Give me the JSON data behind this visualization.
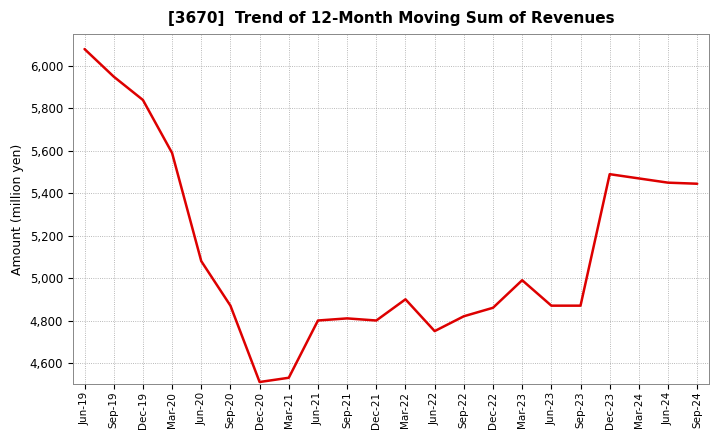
{
  "title": "[3670]  Trend of 12-Month Moving Sum of Revenues",
  "ylabel": "Amount (million yen)",
  "line_color": "#dd0000",
  "background_color": "#ffffff",
  "plot_bg_color": "#ffffff",
  "grid_color": "#999999",
  "ylim": [
    4500,
    6150
  ],
  "yticks": [
    4600,
    4800,
    5000,
    5200,
    5400,
    5600,
    5800,
    6000
  ],
  "x_labels": [
    "Jun-19",
    "Sep-19",
    "Dec-19",
    "Mar-20",
    "Jun-20",
    "Sep-20",
    "Dec-20",
    "Mar-21",
    "Jun-21",
    "Sep-21",
    "Dec-21",
    "Mar-22",
    "Jun-22",
    "Sep-22",
    "Dec-22",
    "Mar-23",
    "Jun-23",
    "Sep-23",
    "Dec-23",
    "Mar-24",
    "Jun-24",
    "Sep-24"
  ],
  "values": [
    6080,
    5950,
    5840,
    5590,
    5080,
    4870,
    4510,
    4530,
    4800,
    4810,
    4800,
    4900,
    4750,
    4820,
    4860,
    4990,
    4870,
    4870,
    5490,
    5470,
    5450,
    5445
  ]
}
